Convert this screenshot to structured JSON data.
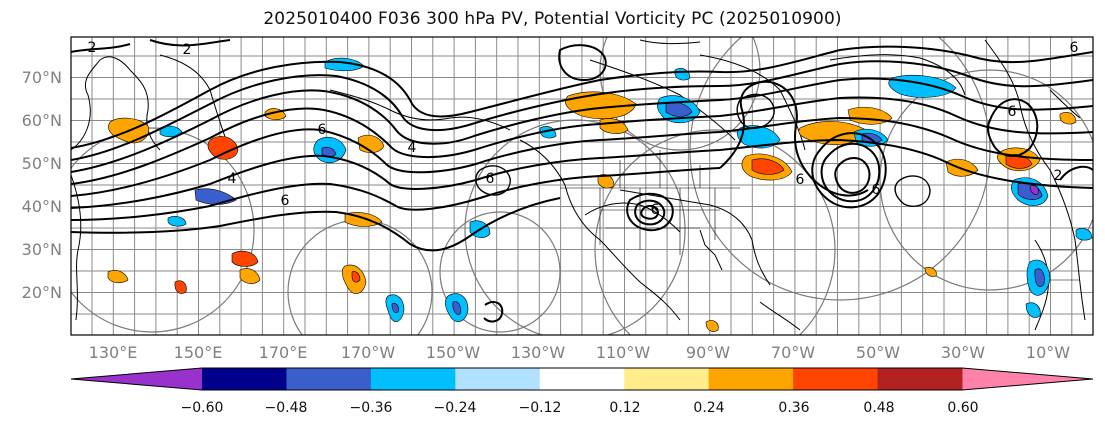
{
  "title": "2025010400 F036 300 hPa PV, Potential Vorticity PC (2025010900)",
  "lat_labels": [
    "70°N",
    "60°N",
    "50°N",
    "40°N",
    "30°N",
    "20°N"
  ],
  "lon_labels": [
    "130°E",
    "150°E",
    "170°E",
    "170°W",
    "150°W",
    "130°W",
    "110°W",
    "90°W",
    "70°W",
    "50°W",
    "30°W",
    "10°W"
  ],
  "colorbar": {
    "labels": [
      "−0.60",
      "−0.48",
      "−0.36",
      "−0.24",
      "−0.12",
      "0.12",
      "0.24",
      "0.36",
      "0.48",
      "0.60"
    ],
    "colors": [
      "#9932cc",
      "#00008b",
      "#3a5fcd",
      "#00bfff",
      "#b0e2ff",
      "#ffffff",
      "#ffec8b",
      "#ffa500",
      "#ff4500",
      "#b22222",
      "#ff82ab"
    ]
  },
  "contour_labels": [
    "2",
    "2",
    "4",
    "6",
    "4",
    "6",
    "6",
    "6",
    "6",
    "6",
    "2",
    "6",
    "6"
  ],
  "colors": {
    "grid": "#8a8a8a",
    "contour": "#000000",
    "axis_text": "#808080"
  }
}
